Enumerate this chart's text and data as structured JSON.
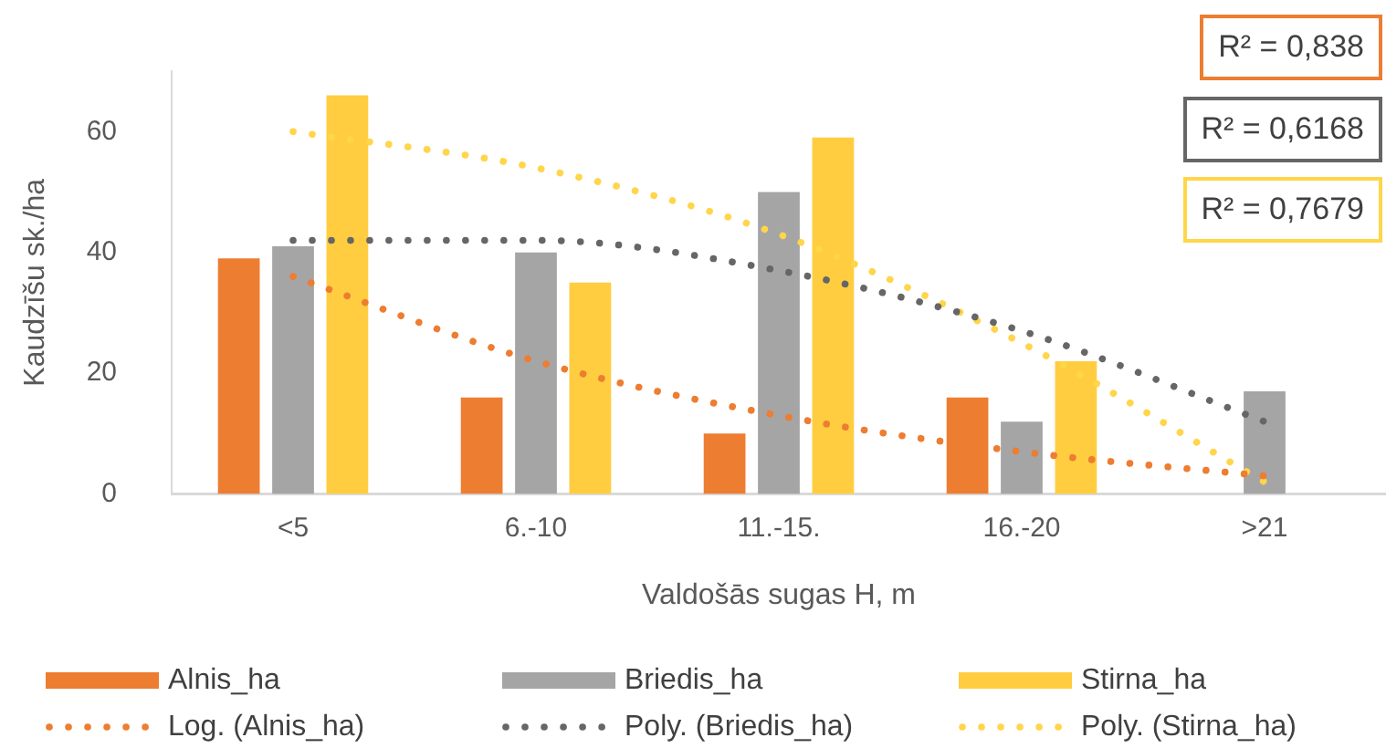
{
  "chart_data": {
    "type": "bar",
    "xlabel": "Valdošās sugas H, m",
    "ylabel": "Kaudzīšu sk./ha",
    "categories": [
      "<5",
      "6.-10",
      "11.-15.",
      "16.-20",
      ">21"
    ],
    "series": [
      {
        "name": "Alnis_ha",
        "color": "#ed7d31",
        "values": [
          39,
          16,
          10,
          16,
          0
        ]
      },
      {
        "name": "Briedis_ha",
        "color": "#a5a5a5",
        "values": [
          41,
          40,
          50,
          12,
          17
        ]
      },
      {
        "name": "Stirna_ha",
        "color": "#ffcd3f",
        "values": [
          66,
          35,
          59,
          22,
          0
        ]
      },
      {
        "name": "Log. (Alnis_ha)",
        "type": "line",
        "color": "#ed7d31",
        "values": [
          36,
          22,
          13,
          7,
          3
        ]
      },
      {
        "name": "Poly. (Briedis_ha)",
        "type": "line",
        "color": "#666666",
        "values": [
          42,
          42,
          37,
          27,
          12
        ]
      },
      {
        "name": "Poly. (Stirna_ha)",
        "type": "line",
        "color": "#ffd54a",
        "values": [
          60,
          54,
          43,
          25,
          2
        ]
      }
    ],
    "ylim": [
      0,
      70
    ],
    "yticks": [
      0,
      20,
      40,
      60
    ],
    "grid": false,
    "legend": "bottom",
    "line_style": "dotted",
    "marker": "none",
    "annotations": [
      "R² = 0,838",
      "R² = 0,6168",
      "R² = 0,7679"
    ]
  }
}
